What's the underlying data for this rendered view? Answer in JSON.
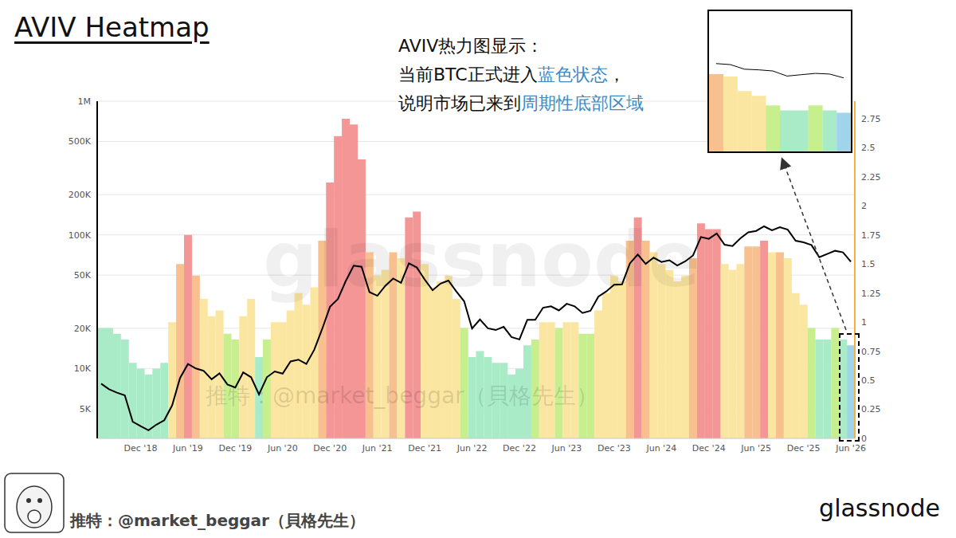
{
  "title": "AVIV Heatmap",
  "annotation": [
    "AVIV热力图显示：",
    "当前BTC正式进入蓝色状态，",
    "说明市场已来到周期性底部区域"
  ],
  "highlight": [
    "蓝色状态",
    "周期性底部区域"
  ],
  "watermark": "glassnode",
  "source": "推特：@market_beggar（貝格先生）",
  "logo": "glassnode",
  "chart_data": {
    "type": "bar",
    "log": "y",
    "grid": true,
    "categories": [
      null,
      null,
      null,
      null,
      null,
      "Dec '18",
      null,
      null,
      null,
      null,
      null,
      "Jun '19",
      null,
      null,
      null,
      null,
      null,
      "Dec '19",
      null,
      null,
      null,
      null,
      null,
      "Jun '20",
      null,
      null,
      null,
      null,
      null,
      "Dec '20",
      null,
      null,
      null,
      null,
      null,
      "Jun '21",
      null,
      null,
      null,
      null,
      null,
      "Dec '21",
      null,
      null,
      null,
      null,
      null,
      "Jun '22",
      null,
      null,
      null,
      null,
      null,
      "Dec '22",
      null,
      null,
      null,
      null,
      null,
      "Jun '23",
      null,
      null,
      null,
      null,
      null,
      "Dec '23",
      null,
      null,
      null,
      null,
      null,
      "Jun '24",
      null,
      null,
      null,
      null,
      null,
      "Dec '24",
      null,
      null,
      null,
      null,
      null,
      "Jun '25",
      null,
      null,
      null,
      null,
      null,
      "Dec '25",
      null,
      null,
      null,
      null,
      null,
      "Jun '26"
    ],
    "series": [
      {
        "type": "line",
        "color": "#000000",
        "values": [
          7700,
          7000,
          6600,
          6300,
          4000,
          3700,
          3450,
          3800,
          4100,
          5300,
          8500,
          10800,
          10000,
          9600,
          8300,
          9200,
          7600,
          7200,
          9350,
          8600,
          6400,
          8600,
          9500,
          9150,
          11300,
          11650,
          10800,
          13800,
          19700,
          29000,
          33100,
          45200,
          58800,
          57700,
          37300,
          35000,
          41500,
          47100,
          43800,
          61300,
          57000,
          46300,
          38500,
          43200,
          45500,
          37700,
          31800,
          19900,
          23300,
          20000,
          19400,
          20500,
          17200,
          16500,
          23100,
          23100,
          28500,
          29200,
          27200,
          30500,
          29200,
          26000,
          27000,
          34500,
          37700,
          42300,
          42600,
          61200,
          71300,
          60600,
          67500,
          62700,
          64600,
          59000,
          63300,
          70200,
          96400,
          93400,
          102400,
          84400,
          82500,
          94200,
          104600,
          107100,
          115800,
          108200,
          114000,
          109500,
          90400,
          88000,
          84000,
          68000,
          72000,
          76000,
          74000,
          63000
        ]
      },
      {
        "type": "bar",
        "axis": "y2",
        "values": [
          0.95,
          0.95,
          0.9,
          0.85,
          0.65,
          0.6,
          0.55,
          0.6,
          0.65,
          1.0,
          1.5,
          1.75,
          1.4,
          1.2,
          1.05,
          1.1,
          0.9,
          0.85,
          1.05,
          1.2,
          0.7,
          0.85,
          1.0,
          1.0,
          1.1,
          1.25,
          1.15,
          1.3,
          1.7,
          2.2,
          2.6,
          2.75,
          2.7,
          2.4,
          1.6,
          1.4,
          1.45,
          1.6,
          1.55,
          1.9,
          1.95,
          1.5,
          1.3,
          1.35,
          1.4,
          1.2,
          0.95,
          0.7,
          0.75,
          0.7,
          0.65,
          0.65,
          0.55,
          0.6,
          0.8,
          0.85,
          1.0,
          1.0,
          0.95,
          1.0,
          1.0,
          0.9,
          0.9,
          1.1,
          1.25,
          1.4,
          1.35,
          1.7,
          1.9,
          1.7,
          1.6,
          1.5,
          1.45,
          1.35,
          1.4,
          1.55,
          1.85,
          1.8,
          1.8,
          1.5,
          1.45,
          1.5,
          1.65,
          1.65,
          1.7,
          1.6,
          1.6,
          1.55,
          1.25,
          1.15,
          0.95,
          0.85,
          0.85,
          0.95,
          0.85,
          0.8
        ],
        "colors": [
          "#a8ebc6",
          "#a8ebc6",
          "#a8ebc6",
          "#a8ebc6",
          "#a8ebc6",
          "#a8ebc6",
          "#a8ebc6",
          "#a8ebc6",
          "#a8ebc6",
          "#fbe6a1",
          "#f8c08f",
          "#f49696",
          "#f8c08f",
          "#fbe6a1",
          "#fbe6a1",
          "#fbe6a1",
          "#c8ef8e",
          "#c8ef8e",
          "#fbe6a1",
          "#fbe6a1",
          "#a8ebc6",
          "#c8ef8e",
          "#fbe6a1",
          "#fbe6a1",
          "#fbe6a1",
          "#fbe6a1",
          "#fbe6a1",
          "#fbe6a1",
          "#f8c08f",
          "#f49696",
          "#f49696",
          "#f49696",
          "#f49696",
          "#f49696",
          "#f8c08f",
          "#fbe6a1",
          "#fbe6a1",
          "#f8c08f",
          "#fbe6a1",
          "#f49696",
          "#f49696",
          "#fbe6a1",
          "#fbe6a1",
          "#fbe6a1",
          "#fbe6a1",
          "#fbe6a1",
          "#c8ef8e",
          "#a8ebc6",
          "#a8ebc6",
          "#a8ebc6",
          "#a8ebc6",
          "#a8ebc6",
          "#a8ebc6",
          "#a8ebc6",
          "#a8ebc6",
          "#c8ef8e",
          "#fbe6a1",
          "#fbe6a1",
          "#c8ef8e",
          "#fbe6a1",
          "#fbe6a1",
          "#c8ef8e",
          "#c8ef8e",
          "#fbe6a1",
          "#fbe6a1",
          "#fbe6a1",
          "#fbe6a1",
          "#f8c08f",
          "#f49696",
          "#f8c08f",
          "#fbe6a1",
          "#fbe6a1",
          "#fbe6a1",
          "#fbe6a1",
          "#fbe6a1",
          "#f8c08f",
          "#f49696",
          "#f49696",
          "#f49696",
          "#fbe6a1",
          "#fbe6a1",
          "#fbe6a1",
          "#f8c08f",
          "#f8c08f",
          "#f49696",
          "#fbe6a1",
          "#f8c08f",
          "#fbe6a1",
          "#fbe6a1",
          "#fbe6a1",
          "#c8ef8e",
          "#a8ebc6",
          "#a8ebc6",
          "#c8ef8e",
          "#a8ebc6",
          "#9fd4ea"
        ]
      }
    ],
    "ylim": [
      3000,
      1000000
    ],
    "yticks": [
      {
        "value": 5000,
        "label": "5K"
      },
      {
        "value": 10000,
        "label": "10K"
      },
      {
        "value": 20000,
        "label": "20K"
      },
      {
        "value": 50000,
        "label": "50K"
      },
      {
        "value": 100000,
        "label": "100K"
      },
      {
        "value": 200000,
        "label": "200K"
      },
      {
        "value": 500000,
        "label": "500K"
      },
      {
        "value": 1000000,
        "label": "1M"
      }
    ],
    "y2lim": [
      0,
      2.9
    ],
    "y2ticks": [
      0,
      0.25,
      0.5,
      0.75,
      1,
      1.25,
      1.5,
      1.75,
      2,
      2.25,
      2.5,
      2.75
    ]
  }
}
